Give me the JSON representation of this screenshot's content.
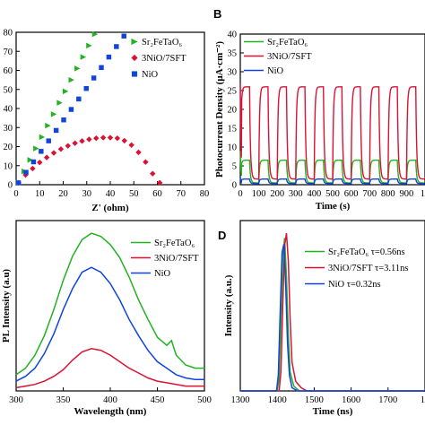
{
  "panel_labels": {
    "b": "B",
    "d": "D"
  },
  "colors": {
    "sft": "#22b222",
    "composite": "#dd1133",
    "nio": "#1144dd"
  },
  "chart_data": [
    {
      "id": "A",
      "type": "scatter",
      "xlabel": "Z' (ohm)",
      "ylabel": "",
      "xlim": [
        0,
        80
      ],
      "ylim": [
        0,
        80
      ],
      "xticks": [
        "0",
        "10",
        "20",
        "30",
        "40",
        "50",
        "60",
        "70",
        "80"
      ],
      "yticks": [
        "0",
        "10",
        "20",
        "30",
        "40",
        "50",
        "60",
        "70",
        "80"
      ],
      "legend_position": "top-right",
      "series": [
        {
          "name": "Sr₂FeTaO₆",
          "color": "#22b222",
          "marker": "triangle-right",
          "x": [
            1,
            3.5,
            6,
            8.5,
            11,
            13.5,
            16,
            18.5,
            21,
            23.5,
            26,
            28.5,
            31,
            33.5
          ],
          "y": [
            1,
            7,
            13,
            19,
            25,
            31,
            37,
            43,
            49,
            55,
            61,
            67,
            73,
            79
          ]
        },
        {
          "name": "3NiO/7SFT",
          "color": "#dd1133",
          "marker": "diamond",
          "x": [
            1,
            4,
            7,
            10,
            13,
            16,
            19,
            22,
            25,
            28,
            31,
            34,
            37,
            40,
            43,
            46,
            49,
            52,
            55,
            58,
            61
          ],
          "y": [
            1,
            5.1,
            8.5,
            11.7,
            14.3,
            16.7,
            18.7,
            20.4,
            21.8,
            22.9,
            23.8,
            24.4,
            24.7,
            24.7,
            24.4,
            23.1,
            20.8,
            17.0,
            11.9,
            5.8,
            1
          ]
        },
        {
          "name": "NiO",
          "color": "#1144dd",
          "marker": "square",
          "x": [
            1,
            4.2,
            7.4,
            10.6,
            13.8,
            17,
            20.2,
            23.4,
            26.6,
            29.8,
            33,
            36.2,
            39.4,
            42.6,
            45.8
          ],
          "y": [
            1,
            6.5,
            12,
            17.5,
            23,
            28.5,
            34,
            39.5,
            45,
            50.5,
            56,
            61.5,
            67,
            72.5,
            78
          ]
        }
      ]
    },
    {
      "id": "B",
      "type": "line",
      "xlabel": "Time (s)",
      "ylabel": "Photocurrent Density (μA·cm⁻²)",
      "xlim": [
        0,
        1000
      ],
      "ylim": [
        0,
        40
      ],
      "xticks": [
        "0",
        "100",
        "200",
        "300",
        "400",
        "500",
        "600",
        "700",
        "800",
        "900",
        "10"
      ],
      "yticks": [
        "0",
        "5",
        "10",
        "15",
        "20",
        "25",
        "30",
        "35",
        "40"
      ],
      "legend_position": "top-left",
      "light_period_s": 100,
      "light_on_duration_s": 50,
      "series": [
        {
          "name": "Sr₂FeTaO₆",
          "color": "#22b222",
          "on_level": 6.5,
          "off_level": 0.5,
          "spike": 9
        },
        {
          "name": "3NiO/7SFT",
          "color": "#dd1133",
          "on_level": 26,
          "off_level": 1.5,
          "spike": 27
        },
        {
          "name": "NiO",
          "color": "#1144dd",
          "on_level": 1.5,
          "off_level": 0.3,
          "spike": 2
        }
      ]
    },
    {
      "id": "C",
      "type": "line",
      "xlabel": "Wavelength (nm)",
      "ylabel": "PL Intensity (a.u)",
      "xlim": [
        300,
        500
      ],
      "xticks": [
        "300",
        "350",
        "400",
        "450",
        "500"
      ],
      "legend_position": "top-right",
      "series": [
        {
          "name": "Sr₂FeTaO₆",
          "color": "#22b222",
          "x": [
            300,
            310,
            320,
            330,
            340,
            350,
            360,
            370,
            380,
            390,
            400,
            410,
            420,
            430,
            440,
            450,
            460,
            465,
            470,
            480,
            490,
            500
          ],
          "y": [
            0.1,
            0.14,
            0.22,
            0.34,
            0.5,
            0.68,
            0.83,
            0.93,
            0.97,
            0.95,
            0.9,
            0.82,
            0.7,
            0.56,
            0.44,
            0.33,
            0.28,
            0.31,
            0.22,
            0.16,
            0.14,
            0.14
          ]
        },
        {
          "name": "3NiO/7SFT",
          "color": "#dd1133",
          "x": [
            300,
            310,
            320,
            330,
            340,
            350,
            360,
            370,
            380,
            390,
            400,
            410,
            420,
            430,
            440,
            450,
            460,
            470,
            480,
            490,
            500
          ],
          "y": [
            0.02,
            0.03,
            0.04,
            0.06,
            0.09,
            0.13,
            0.19,
            0.24,
            0.26,
            0.25,
            0.22,
            0.18,
            0.14,
            0.11,
            0.08,
            0.06,
            0.05,
            0.04,
            0.03,
            0.03,
            0.03
          ]
        },
        {
          "name": "NiO",
          "color": "#1144dd",
          "x": [
            300,
            310,
            320,
            330,
            340,
            350,
            360,
            370,
            380,
            390,
            400,
            410,
            420,
            430,
            440,
            450,
            460,
            470,
            480,
            490,
            500
          ],
          "y": [
            0.06,
            0.09,
            0.14,
            0.23,
            0.35,
            0.5,
            0.63,
            0.73,
            0.76,
            0.73,
            0.66,
            0.56,
            0.44,
            0.34,
            0.25,
            0.18,
            0.14,
            0.1,
            0.08,
            0.07,
            0.07
          ]
        }
      ]
    },
    {
      "id": "D",
      "type": "line",
      "xlabel": "Time (ns)",
      "ylabel": "Intensity (a.u.)",
      "xlim": [
        1300,
        1800
      ],
      "xticks": [
        "1300",
        "1400",
        "1500",
        "1600",
        "1700",
        "18"
      ],
      "legend_position": "top-right",
      "series": [
        {
          "name": "Sr₂FeTaO₆ τ=0.56ns",
          "color": "#22b222",
          "x": [
            1300,
            1400,
            1405,
            1410,
            1415,
            1420,
            1425,
            1430,
            1435,
            1445,
            1460,
            1800
          ],
          "y": [
            0.0,
            0.0,
            0.08,
            0.45,
            0.85,
            0.97,
            0.72,
            0.35,
            0.12,
            0.03,
            0.0,
            0.0
          ]
        },
        {
          "name": "3NiO/7SFT τ=3.11ns",
          "color": "#dd1133",
          "x": [
            1300,
            1405,
            1410,
            1415,
            1420,
            1425,
            1430,
            1435,
            1440,
            1450,
            1465,
            1480,
            1800
          ],
          "y": [
            0.0,
            0.0,
            0.12,
            0.55,
            0.92,
            1.0,
            0.82,
            0.45,
            0.18,
            0.06,
            0.02,
            0.0,
            0.0
          ]
        },
        {
          "name": "NiO τ=0.32ns",
          "color": "#1144dd",
          "x": [
            1300,
            1398,
            1403,
            1408,
            1413,
            1418,
            1423,
            1428,
            1433,
            1440,
            1455,
            1800
          ],
          "y": [
            0.0,
            0.0,
            0.1,
            0.5,
            0.88,
            0.93,
            0.66,
            0.3,
            0.1,
            0.02,
            0.0,
            0.0
          ]
        }
      ]
    }
  ]
}
